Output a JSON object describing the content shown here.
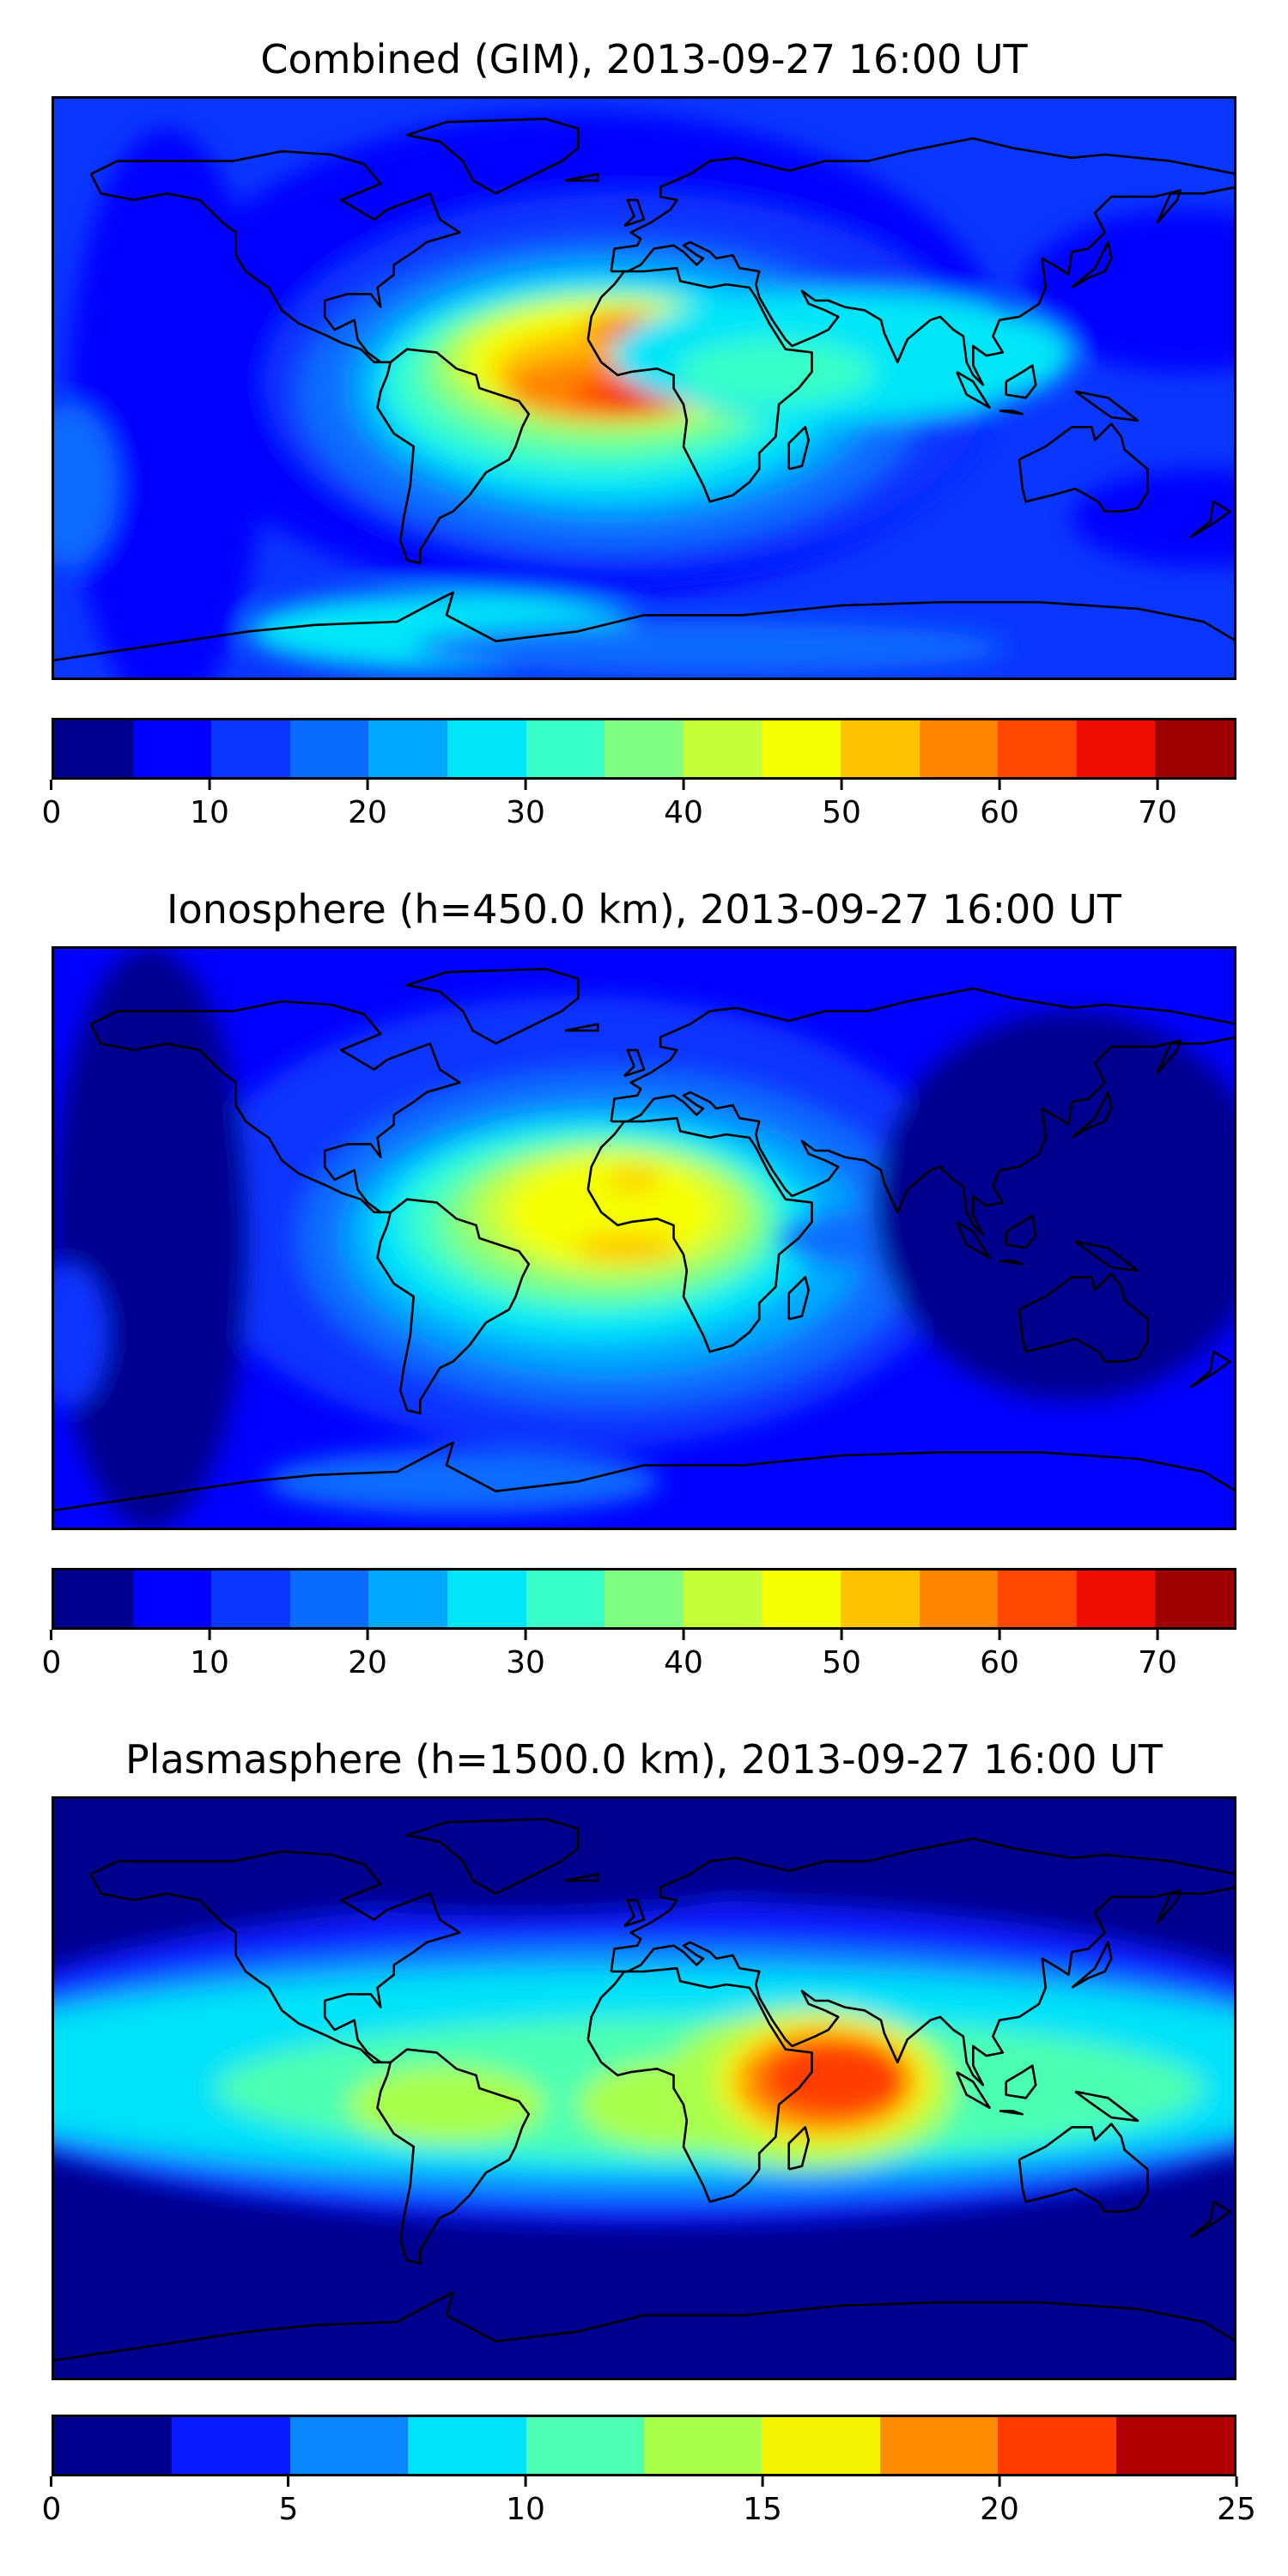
{
  "panels": [
    {
      "title": "Combined (GIM), 2013-09-27 16:00 UT",
      "colorbar": {
        "levels": [
          0,
          5,
          10,
          15,
          20,
          25,
          30,
          35,
          40,
          45,
          50,
          55,
          60,
          65,
          70,
          75
        ],
        "tick_labels": [
          "0",
          "10",
          "20",
          "30",
          "40",
          "50",
          "60",
          "70"
        ],
        "tick_values": [
          0,
          10,
          20,
          30,
          40,
          50,
          60,
          70
        ],
        "vmin": 0,
        "vmax": 75,
        "colors": [
          "#00008f",
          "#0000ff",
          "#0a36ff",
          "#0a6cff",
          "#00a8ff",
          "#00e6f8",
          "#38ffc8",
          "#80ff80",
          "#c4ff3a",
          "#f5ff00",
          "#ffc200",
          "#ff8400",
          "#ff4700",
          "#ee0d00",
          "#9e0000"
        ]
      },
      "field": {
        "background_level": 2,
        "features": [
          {
            "lon": -20,
            "lat": 10,
            "rlon": 130,
            "rlat": 75,
            "level": 1
          },
          {
            "lon": -5,
            "lat": 2,
            "rlon": 110,
            "rlat": 58,
            "level": 2
          },
          {
            "lon": -10,
            "lat": -2,
            "rlon": 95,
            "rlat": 48,
            "level": 3
          },
          {
            "lon": -10,
            "lat": 0,
            "rlon": 80,
            "rlat": 40,
            "level": 4
          },
          {
            "lon": -12,
            "lat": 0,
            "rlon": 70,
            "rlat": 34,
            "level": 5
          },
          {
            "lon": -15,
            "lat": 2,
            "rlon": 62,
            "rlat": 28,
            "level": 6
          },
          {
            "lon": -12,
            "lat": 5,
            "rlon": 55,
            "rlat": 24,
            "level": 7
          },
          {
            "lon": -10,
            "lat": 8,
            "rlon": 50,
            "rlat": 20,
            "level": 8
          },
          {
            "lon": -8,
            "lat": 8,
            "rlon": 45,
            "rlat": 18,
            "level": 9
          },
          {
            "lon": -8,
            "lat": 5,
            "rlon": 38,
            "rlat": 14,
            "level": 10
          },
          {
            "lon": -12,
            "lat": 0,
            "rlon": 30,
            "rlat": 10,
            "level": 11
          },
          {
            "lon": -2,
            "lat": -2,
            "rlon": 20,
            "rlat": 6,
            "level": 12
          },
          {
            "lon": 0,
            "lat": -3,
            "rlon": 12,
            "rlat": 3,
            "level": 13
          },
          {
            "lon": -5,
            "lat": 18,
            "rlon": 14,
            "rlat": 5,
            "level": 11
          },
          {
            "lon": -3,
            "lat": 20,
            "rlon": 7,
            "rlat": 2.5,
            "level": 12
          },
          {
            "lon": -145,
            "lat": -10,
            "rlon": 30,
            "rlat": 90,
            "level": 1
          },
          {
            "lon": 165,
            "lat": 30,
            "rlon": 50,
            "rlat": 25,
            "level": 1
          },
          {
            "lon": 170,
            "lat": -40,
            "rlon": 40,
            "rlat": 15,
            "level": 1
          },
          {
            "lon": -175,
            "lat": -30,
            "rlon": 15,
            "rlat": 25,
            "level": 3
          },
          {
            "lon": 60,
            "lat": 10,
            "rlon": 70,
            "rlat": 20,
            "level": 5
          },
          {
            "lon": 40,
            "lat": 5,
            "rlon": 30,
            "rlat": 10,
            "level": 6
          },
          {
            "lon": -60,
            "lat": -75,
            "rlon": 60,
            "rlat": 12,
            "level": 5
          },
          {
            "lon": 20,
            "lat": -80,
            "rlon": 90,
            "rlat": 8,
            "level": 3
          }
        ]
      }
    },
    {
      "title": "Ionosphere  (h=450.0 km), 2013-09-27 16:00 UT",
      "colorbar": {
        "levels": [
          0,
          5,
          10,
          15,
          20,
          25,
          30,
          35,
          40,
          45,
          50,
          55,
          60,
          65,
          70,
          75
        ],
        "tick_labels": [
          "0",
          "10",
          "20",
          "30",
          "40",
          "50",
          "60",
          "70"
        ],
        "tick_values": [
          0,
          10,
          20,
          30,
          40,
          50,
          60,
          70
        ],
        "vmin": 0,
        "vmax": 75,
        "colors": [
          "#00008f",
          "#0000ff",
          "#0a36ff",
          "#0a6cff",
          "#00a8ff",
          "#00e6f8",
          "#38ffc8",
          "#80ff80",
          "#c4ff3a",
          "#f5ff00",
          "#ffc200",
          "#ff8400",
          "#ff4700",
          "#ee0d00",
          "#9e0000"
        ]
      },
      "field": {
        "background_level": 1,
        "features": [
          {
            "lon": -20,
            "lat": 5,
            "rlon": 120,
            "rlat": 70,
            "level": 2
          },
          {
            "lon": -10,
            "lat": 0,
            "rlon": 95,
            "rlat": 52,
            "level": 3
          },
          {
            "lon": -12,
            "lat": 0,
            "rlon": 80,
            "rlat": 42,
            "level": 4
          },
          {
            "lon": -15,
            "lat": 2,
            "rlon": 68,
            "rlat": 34,
            "level": 5
          },
          {
            "lon": -15,
            "lat": 5,
            "rlon": 58,
            "rlat": 28,
            "level": 6
          },
          {
            "lon": -12,
            "lat": 5,
            "rlon": 50,
            "rlat": 24,
            "level": 7
          },
          {
            "lon": -10,
            "lat": 8,
            "rlon": 42,
            "rlat": 20,
            "level": 8
          },
          {
            "lon": -10,
            "lat": 8,
            "rlon": 32,
            "rlat": 17,
            "level": 9
          },
          {
            "lon": -5,
            "lat": -3,
            "rlon": 16,
            "rlat": 4,
            "level": 10
          },
          {
            "lon": -3,
            "lat": 18,
            "rlon": 8,
            "rlat": 3,
            "level": 10
          },
          {
            "lon": 80,
            "lat": 0,
            "rlon": 40,
            "rlat": 10,
            "level": 3
          },
          {
            "lon": 130,
            "lat": 10,
            "rlon": 60,
            "rlat": 60,
            "level": 0
          },
          {
            "lon": -150,
            "lat": 0,
            "rlon": 30,
            "rlat": 90,
            "level": 0
          },
          {
            "lon": -175,
            "lat": -30,
            "rlon": 12,
            "rlat": 22,
            "level": 2
          },
          {
            "lon": -55,
            "lat": -75,
            "rlon": 60,
            "rlat": 10,
            "level": 3
          }
        ]
      }
    },
    {
      "title": "Plasmasphere (h=1500.0 km), 2013-09-27 16:00 UT",
      "colorbar": {
        "levels": [
          0,
          2.5,
          5,
          7.5,
          10,
          12.5,
          15,
          17.5,
          20,
          22.5,
          25
        ],
        "tick_labels": [
          "0",
          "5",
          "10",
          "15",
          "20",
          "25"
        ],
        "tick_values": [
          0,
          5,
          10,
          15,
          20,
          25
        ],
        "vmin": 0,
        "vmax": 25,
        "colors": [
          "#00008f",
          "#0a1aff",
          "#0a86ff",
          "#00e2f8",
          "#4cffb2",
          "#a8ff4c",
          "#f5f500",
          "#ff8c00",
          "#ff3c00",
          "#b00000"
        ]
      },
      "field": {
        "background_level": 0,
        "features": [
          {
            "lon": 0,
            "lat": 8,
            "rlon": 220,
            "rlat": 50,
            "level": 1
          },
          {
            "lon": 0,
            "lat": 5,
            "rlon": 220,
            "rlat": 40,
            "level": 2
          },
          {
            "lon": 0,
            "lat": 5,
            "rlon": 220,
            "rlat": 32,
            "level": 3
          },
          {
            "lon": 20,
            "lat": 0,
            "rlon": 150,
            "rlat": 22,
            "level": 4
          },
          {
            "lon": -60,
            "lat": -5,
            "rlon": 30,
            "rlat": 12,
            "level": 5
          },
          {
            "lon": 10,
            "lat": -5,
            "rlon": 30,
            "rlat": 14,
            "level": 5
          },
          {
            "lon": 50,
            "lat": 0,
            "rlon": 45,
            "rlat": 25,
            "level": 5
          },
          {
            "lon": 55,
            "lat": 2,
            "rlon": 33,
            "rlat": 20,
            "level": 6
          },
          {
            "lon": 55,
            "lat": 2,
            "rlon": 27,
            "rlat": 16,
            "level": 7
          },
          {
            "lon": 58,
            "lat": 3,
            "rlon": 22,
            "rlat": 12,
            "level": 8
          },
          {
            "lon": -40,
            "lat": 65,
            "rlon": 80,
            "rlat": 12,
            "level": 0
          },
          {
            "lon": 90,
            "lat": -75,
            "rlon": 90,
            "rlat": 8,
            "level": 0
          }
        ]
      }
    }
  ]
}
